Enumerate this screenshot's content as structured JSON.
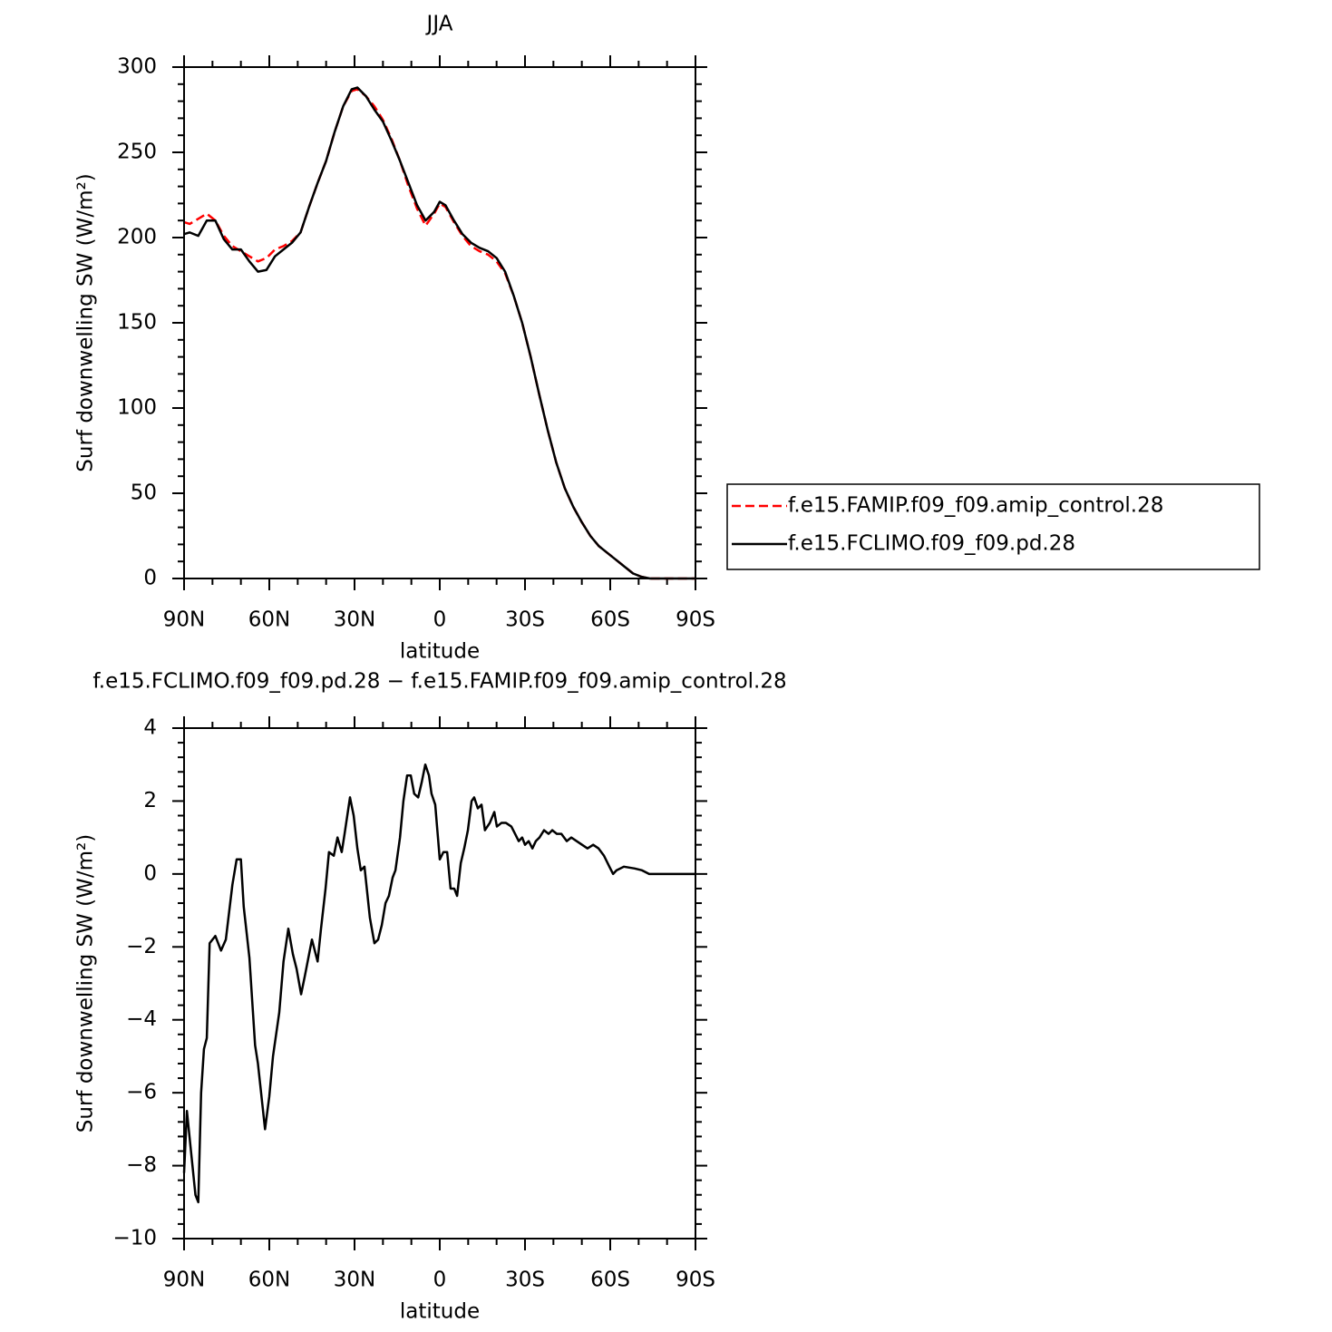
{
  "chart_data": [
    {
      "type": "line",
      "title": "JJA",
      "xlabel": "latitude",
      "ylabel": "Surf downwelling SW (W/m²)",
      "xlim": [
        90,
        -90
      ],
      "xticks": [
        {
          "value": 90,
          "label": "90N"
        },
        {
          "value": 60,
          "label": "60N"
        },
        {
          "value": 30,
          "label": "30N"
        },
        0,
        {
          "value": -30,
          "label": "30S"
        },
        {
          "value": -60,
          "label": "60S"
        },
        {
          "value": -90,
          "label": "90S"
        }
      ],
      "ylim": [
        0,
        300
      ],
      "yticks": [
        0,
        50,
        100,
        150,
        200,
        250,
        300
      ],
      "legend": "right",
      "x": [
        90,
        88,
        85,
        82,
        79,
        76,
        73,
        70,
        67,
        64,
        61,
        58,
        55,
        52,
        49,
        46,
        43,
        40,
        37,
        34,
        31,
        29,
        26,
        23,
        20,
        17,
        14,
        11,
        8,
        5,
        2,
        0,
        -2,
        -5,
        -8,
        -11,
        -14,
        -17,
        -20,
        -23,
        -26,
        -29,
        -32,
        -35,
        -38,
        -41,
        -44,
        -47,
        -50,
        -53,
        -56,
        -59,
        -62,
        -65,
        -68,
        -71,
        -74,
        -80,
        -85,
        -90
      ],
      "series": [
        {
          "name": "f.e15.FAMIP.f09_f09.amip_control.28",
          "color": "#ff0000",
          "dashed": true,
          "values": [
            209,
            208,
            211,
            214,
            210,
            201,
            195,
            192,
            189,
            186,
            188,
            193,
            195,
            198,
            203,
            218,
            232,
            245,
            262,
            277,
            286,
            287,
            283,
            277,
            269,
            258,
            245,
            230,
            217,
            207,
            214,
            220,
            218,
            209,
            201,
            195,
            192,
            190,
            186,
            179,
            166,
            150,
            130,
            108,
            87,
            68,
            53,
            42,
            33,
            25,
            19,
            15,
            11,
            7,
            3,
            1,
            0,
            0,
            0,
            0
          ]
        },
        {
          "name": "f.e15.FCLIMO.f09_f09.pd.28",
          "color": "#000000",
          "dashed": false,
          "values": [
            202,
            203,
            201,
            210,
            210,
            199,
            193,
            193,
            186,
            180,
            181,
            189,
            193,
            197,
            203,
            218,
            232,
            245,
            262,
            277,
            287,
            288,
            283,
            275,
            268,
            257,
            245,
            232,
            219,
            210,
            215,
            221,
            219,
            210,
            202,
            197,
            194,
            192,
            188,
            180,
            166,
            150,
            130,
            108,
            87,
            68,
            53,
            42,
            33,
            25,
            19,
            15,
            11,
            7,
            3,
            1,
            0,
            0,
            0,
            0
          ]
        }
      ]
    },
    {
      "type": "line",
      "title": "f.e15.FCLIMO.f09_f09.pd.28 − f.e15.FAMIP.f09_f09.amip_control.28",
      "xlabel": "latitude",
      "ylabel": "Surf downwelling SW (W/m²)",
      "xlim": [
        90,
        -90
      ],
      "xticks": [
        {
          "value": 90,
          "label": "90N"
        },
        {
          "value": 60,
          "label": "60N"
        },
        {
          "value": 30,
          "label": "30N"
        },
        0,
        {
          "value": -30,
          "label": "30S"
        },
        {
          "value": -60,
          "label": "60S"
        },
        {
          "value": -90,
          "label": "90S"
        }
      ],
      "ylim": [
        -10,
        4
      ],
      "yticks": [
        {
          "value": -10,
          "label": "−10"
        },
        {
          "value": -8,
          "label": "−8"
        },
        {
          "value": -6,
          "label": "−6"
        },
        {
          "value": -4,
          "label": "−4"
        },
        {
          "value": -2,
          "label": "−2"
        },
        0,
        2,
        4
      ],
      "color": "#000000",
      "x": [
        90,
        89,
        86,
        85,
        84,
        83,
        82,
        81,
        79,
        77,
        75.3,
        73,
        71.5,
        70,
        69,
        67,
        65,
        64,
        61.5,
        60,
        58.7,
        56.5,
        55,
        53.3,
        51.7,
        50.4,
        48.8,
        47.5,
        45,
        43,
        41.8,
        40.2,
        39,
        37.3,
        36,
        34.5,
        33.5,
        31.6,
        30.3,
        29,
        27.8,
        26.5,
        24.6,
        23,
        21.7,
        20.4,
        19.1,
        17.9,
        16.6,
        15.6,
        14,
        12.8,
        11.5,
        10.2,
        9,
        7.6,
        6.4,
        5.1,
        3.8,
        2.9,
        1.6,
        0,
        -1.3,
        -2.6,
        -3.8,
        -5.1,
        -6.1,
        -7.4,
        -8.6,
        -9.9,
        -11.2,
        -12.1,
        -13.4,
        -14.7,
        -15.9,
        -17.6,
        -19.2,
        -20.1,
        -21.7,
        -23.3,
        -25.2,
        -26.5,
        -27.8,
        -29,
        -30,
        -31.3,
        -32.6,
        -33.8,
        -35.1,
        -36.7,
        -38.3,
        -39.6,
        -41.2,
        -42.8,
        -44.7,
        -46.3,
        -48.2,
        -50.1,
        -52,
        -54,
        -55.9,
        -57.8,
        -59.7,
        -61,
        -62.2,
        -64.8,
        -68.6,
        -71.2,
        -73.7,
        -78.2,
        -90
      ],
      "values": [
        -8.2,
        -6.5,
        -8.8,
        -9,
        -6,
        -4.8,
        -4.5,
        -1.9,
        -1.7,
        -2.1,
        -1.8,
        -0.3,
        0.4,
        0.4,
        -0.9,
        -2.3,
        -4.7,
        -5.2,
        -7,
        -6.1,
        -5,
        -3.8,
        -2.4,
        -1.5,
        -2.2,
        -2.6,
        -3.3,
        -2.8,
        -1.8,
        -2.4,
        -1.5,
        -0.4,
        0.6,
        0.5,
        1,
        0.6,
        1.1,
        2.1,
        1.6,
        0.7,
        0.1,
        0.2,
        -1.2,
        -1.9,
        -1.8,
        -1.4,
        -0.8,
        -0.6,
        -0.1,
        0.1,
        1,
        2,
        2.7,
        2.7,
        2.2,
        2.1,
        2.5,
        3,
        2.7,
        2.2,
        1.9,
        0.4,
        0.6,
        0.6,
        -0.4,
        -0.4,
        -0.6,
        0.3,
        0.7,
        1.2,
        2,
        2.1,
        1.8,
        1.9,
        1.2,
        1.4,
        1.7,
        1.3,
        1.4,
        1.4,
        1.3,
        1.1,
        0.9,
        1,
        0.8,
        0.9,
        0.7,
        0.9,
        1,
        1.2,
        1.1,
        1.2,
        1.1,
        1.1,
        0.9,
        1,
        0.9,
        0.8,
        0.7,
        0.8,
        0.7,
        0.5,
        0.2,
        0,
        0.1,
        0.2,
        0.15,
        0.1,
        0,
        0,
        0
      ]
    }
  ]
}
